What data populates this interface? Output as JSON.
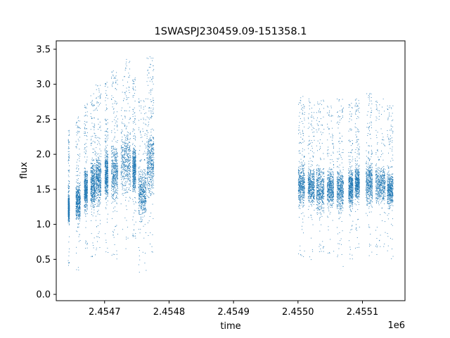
{
  "chart_data": {
    "type": "scatter",
    "title": "1SWASPJ230459.09-151358.1",
    "xlabel": "time",
    "ylabel": "flux",
    "x_offset_label": "1e6",
    "x_unit_scale": 1000000,
    "xlim": [
      2454625,
      2455166
    ],
    "ylim": [
      -0.09,
      3.62
    ],
    "x_ticks": [
      2454700,
      2454800,
      2454900,
      2455000,
      2455100
    ],
    "x_tick_labels": [
      "2.4547",
      "2.4548",
      "2.4549",
      "2.4550",
      "2.4551"
    ],
    "y_ticks": [
      0.0,
      0.5,
      1.0,
      1.5,
      2.0,
      2.5,
      3.0,
      3.5
    ],
    "y_tick_labels": [
      "0.0",
      "0.5",
      "1.0",
      "1.5",
      "2.0",
      "2.5",
      "3.0",
      "3.5"
    ],
    "grid": false,
    "point_color": "#1f77b4",
    "clusters": [
      {
        "x": [
          2454643,
          2454645
        ],
        "y": [
          1.0,
          1.45
        ]
      },
      {
        "x": [
          2454655,
          2454662
        ],
        "y": [
          1.0,
          1.65
        ]
      },
      {
        "x": [
          2454668,
          2454673
        ],
        "y": [
          1.15,
          1.85
        ]
      },
      {
        "x": [
          2454678,
          2454685
        ],
        "y": [
          1.15,
          2.0
        ]
      },
      {
        "x": [
          2454686,
          2454694
        ],
        "y": [
          1.2,
          2.1
        ]
      },
      {
        "x": [
          2454700,
          2454705
        ],
        "y": [
          1.3,
          2.15
        ]
      },
      {
        "x": [
          2454710,
          2454720
        ],
        "y": [
          1.2,
          2.3
        ]
      },
      {
        "x": [
          2454725,
          2454740
        ],
        "y": [
          1.3,
          2.5
        ]
      },
      {
        "x": [
          2454743,
          2454748
        ],
        "y": [
          1.4,
          2.2
        ]
      },
      {
        "x": [
          2454752,
          2454764
        ],
        "y": [
          1.0,
          1.9
        ]
      },
      {
        "x": [
          2454765,
          2454776
        ],
        "y": [
          1.3,
          2.5
        ]
      },
      {
        "x": [
          2455000,
          2455010
        ],
        "y": [
          1.2,
          1.95
        ]
      },
      {
        "x": [
          2455015,
          2455025
        ],
        "y": [
          1.2,
          1.9
        ]
      },
      {
        "x": [
          2455028,
          2455040
        ],
        "y": [
          1.1,
          1.9
        ]
      },
      {
        "x": [
          2455045,
          2455055
        ],
        "y": [
          1.2,
          1.85
        ]
      },
      {
        "x": [
          2455060,
          2455070
        ],
        "y": [
          1.1,
          1.9
        ]
      },
      {
        "x": [
          2455078,
          2455085
        ],
        "y": [
          1.2,
          1.85
        ]
      },
      {
        "x": [
          2455088,
          2455095
        ],
        "y": [
          1.3,
          1.9
        ]
      },
      {
        "x": [
          2455105,
          2455115
        ],
        "y": [
          1.2,
          2.0
        ]
      },
      {
        "x": [
          2455120,
          2455135
        ],
        "y": [
          1.25,
          1.9
        ]
      },
      {
        "x": [
          2455138,
          2455147
        ],
        "y": [
          1.2,
          1.8
        ]
      }
    ]
  }
}
